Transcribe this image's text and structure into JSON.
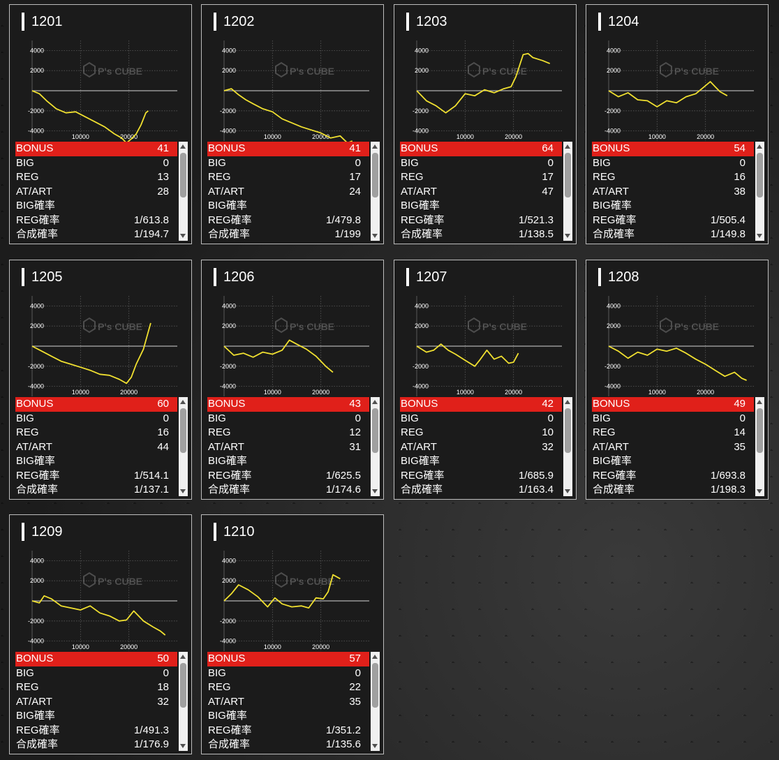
{
  "labels": {
    "bonus": "BONUS",
    "big": "BIG",
    "reg": "REG",
    "at_art": "AT/ART",
    "big_prob": "BIG確率",
    "reg_prob": "REG確率",
    "combined_prob": "合成確率"
  },
  "watermark": {
    "brand": "P's CUBE"
  },
  "colors": {
    "bonus_row": "#e0201a",
    "graph_line": "#f0e030",
    "card_bg": "#1b1b1b"
  },
  "chart_axes": {
    "y_ticks": [
      "4000",
      "2000",
      "-2000",
      "-4000"
    ],
    "x_ticks": [
      "10000",
      "20000"
    ]
  },
  "machines": [
    {
      "id": "1201",
      "bonus": "41",
      "big": "0",
      "reg": "13",
      "at_art": "28",
      "big_prob": "",
      "reg_prob": "1/613.8",
      "combined_prob": "1/194.7",
      "chart_data": {
        "type": "line",
        "x": [
          0,
          1500,
          3000,
          5000,
          7000,
          9000,
          11000,
          13000,
          15000,
          17000,
          18500,
          19500,
          20500,
          21500,
          22500,
          23500,
          24000
        ],
        "y": [
          0,
          -300,
          -1000,
          -1800,
          -2200,
          -2100,
          -2600,
          -3100,
          -3600,
          -4300,
          -4700,
          -5200,
          -4800,
          -4300,
          -3400,
          -2200,
          -2000
        ],
        "xlim": [
          0,
          30000
        ],
        "ylim": [
          -5000,
          5000
        ]
      }
    },
    {
      "id": "1202",
      "bonus": "41",
      "big": "0",
      "reg": "17",
      "at_art": "24",
      "big_prob": "",
      "reg_prob": "1/479.8",
      "combined_prob": "1/199",
      "chart_data": {
        "type": "line",
        "x": [
          0,
          1500,
          3000,
          4500,
          6000,
          8000,
          10000,
          12000,
          14000,
          16000,
          18000,
          20000,
          22000,
          24000,
          25500,
          26500
        ],
        "y": [
          0,
          200,
          -400,
          -900,
          -1300,
          -1800,
          -2100,
          -2800,
          -3200,
          -3600,
          -3900,
          -4200,
          -4700,
          -4500,
          -5200,
          -5000
        ],
        "xlim": [
          0,
          30000
        ],
        "ylim": [
          -5000,
          5000
        ]
      }
    },
    {
      "id": "1203",
      "bonus": "64",
      "big": "0",
      "reg": "17",
      "at_art": "47",
      "big_prob": "",
      "reg_prob": "1/521.3",
      "combined_prob": "1/138.5",
      "chart_data": {
        "type": "line",
        "x": [
          0,
          2000,
          4000,
          6000,
          8000,
          10000,
          12000,
          14000,
          16000,
          18000,
          19500,
          20500,
          22000,
          23000,
          24000,
          26000,
          27500
        ],
        "y": [
          0,
          -1000,
          -1500,
          -2200,
          -1500,
          -300,
          -500,
          100,
          -200,
          200,
          400,
          1400,
          3600,
          3700,
          3300,
          3000,
          2700
        ],
        "xlim": [
          0,
          30000
        ],
        "ylim": [
          -5000,
          5000
        ]
      }
    },
    {
      "id": "1204",
      "bonus": "54",
      "big": "0",
      "reg": "16",
      "at_art": "38",
      "big_prob": "",
      "reg_prob": "1/505.4",
      "combined_prob": "1/149.8",
      "chart_data": {
        "type": "line",
        "x": [
          0,
          2000,
          4000,
          6000,
          8000,
          10000,
          12000,
          14000,
          16000,
          18000,
          19500,
          21000,
          22000,
          23000,
          24500
        ],
        "y": [
          0,
          -600,
          -200,
          -900,
          -1000,
          -1600,
          -1000,
          -1200,
          -600,
          -300,
          300,
          900,
          400,
          -100,
          -500
        ],
        "xlim": [
          0,
          30000
        ],
        "ylim": [
          -5000,
          5000
        ]
      }
    },
    {
      "id": "1205",
      "bonus": "60",
      "big": "0",
      "reg": "16",
      "at_art": "44",
      "big_prob": "",
      "reg_prob": "1/514.1",
      "combined_prob": "1/137.1",
      "chart_data": {
        "type": "line",
        "x": [
          0,
          2000,
          4000,
          6000,
          8000,
          10000,
          12000,
          14000,
          16000,
          18000,
          19500,
          20500,
          21500,
          23000,
          24500
        ],
        "y": [
          0,
          -500,
          -1000,
          -1500,
          -1800,
          -2100,
          -2400,
          -2800,
          -2900,
          -3300,
          -3700,
          -3100,
          -1800,
          -300,
          2300
        ],
        "xlim": [
          0,
          30000
        ],
        "ylim": [
          -5000,
          5000
        ]
      }
    },
    {
      "id": "1206",
      "bonus": "43",
      "big": "0",
      "reg": "12",
      "at_art": "31",
      "big_prob": "",
      "reg_prob": "1/625.5",
      "combined_prob": "1/174.6",
      "chart_data": {
        "type": "line",
        "x": [
          0,
          2000,
          4000,
          6000,
          8000,
          10000,
          12000,
          13500,
          15000,
          17000,
          19000,
          21000,
          22500
        ],
        "y": [
          0,
          -900,
          -700,
          -1100,
          -600,
          -800,
          -400,
          600,
          200,
          -300,
          -1000,
          -2000,
          -2600
        ],
        "xlim": [
          0,
          30000
        ],
        "ylim": [
          -5000,
          5000
        ]
      }
    },
    {
      "id": "1207",
      "bonus": "42",
      "big": "0",
      "reg": "10",
      "at_art": "32",
      "big_prob": "",
      "reg_prob": "1/685.9",
      "combined_prob": "1/163.4",
      "chart_data": {
        "type": "line",
        "x": [
          0,
          2000,
          3500,
          5000,
          6500,
          8000,
          10000,
          12000,
          13000,
          14500,
          16000,
          17500,
          19000,
          20000,
          21000
        ],
        "y": [
          0,
          -600,
          -400,
          200,
          -400,
          -800,
          -1400,
          -2000,
          -1400,
          -400,
          -1300,
          -1000,
          -1700,
          -1600,
          -700
        ],
        "xlim": [
          0,
          30000
        ],
        "ylim": [
          -5000,
          5000
        ]
      }
    },
    {
      "id": "1208",
      "bonus": "49",
      "big": "0",
      "reg": "14",
      "at_art": "35",
      "big_prob": "",
      "reg_prob": "1/693.8",
      "combined_prob": "1/198.3",
      "chart_data": {
        "type": "line",
        "x": [
          0,
          2000,
          4000,
          6000,
          8000,
          10000,
          12000,
          14000,
          16000,
          18000,
          20000,
          22000,
          24000,
          26000,
          27500,
          28500
        ],
        "y": [
          0,
          -500,
          -1200,
          -600,
          -900,
          -300,
          -500,
          -200,
          -700,
          -1300,
          -1800,
          -2400,
          -3000,
          -2600,
          -3200,
          -3400
        ],
        "xlim": [
          0,
          30000
        ],
        "ylim": [
          -5000,
          5000
        ]
      }
    },
    {
      "id": "1209",
      "bonus": "50",
      "big": "0",
      "reg": "18",
      "at_art": "32",
      "big_prob": "",
      "reg_prob": "1/491.3",
      "combined_prob": "1/176.9",
      "chart_data": {
        "type": "line",
        "x": [
          0,
          1500,
          2500,
          4000,
          6000,
          8000,
          10000,
          12000,
          14000,
          16000,
          18000,
          19500,
          21000,
          23000,
          25000,
          26500,
          27500
        ],
        "y": [
          0,
          -200,
          500,
          200,
          -500,
          -700,
          -900,
          -500,
          -1200,
          -1500,
          -2000,
          -1900,
          -1000,
          -2000,
          -2600,
          -3000,
          -3400
        ],
        "xlim": [
          0,
          30000
        ],
        "ylim": [
          -5000,
          5000
        ]
      }
    },
    {
      "id": "1210",
      "bonus": "57",
      "big": "0",
      "reg": "22",
      "at_art": "35",
      "big_prob": "",
      "reg_prob": "1/351.2",
      "combined_prob": "1/135.6",
      "chart_data": {
        "type": "line",
        "x": [
          0,
          1500,
          3000,
          5000,
          7000,
          9000,
          10500,
          12000,
          14000,
          16000,
          17500,
          19000,
          20500,
          21500,
          22500,
          24000
        ],
        "y": [
          0,
          700,
          1600,
          1100,
          400,
          -600,
          300,
          -300,
          -600,
          -500,
          -700,
          300,
          200,
          900,
          2600,
          2200
        ],
        "xlim": [
          0,
          30000
        ],
        "ylim": [
          -5000,
          5000
        ]
      }
    }
  ]
}
